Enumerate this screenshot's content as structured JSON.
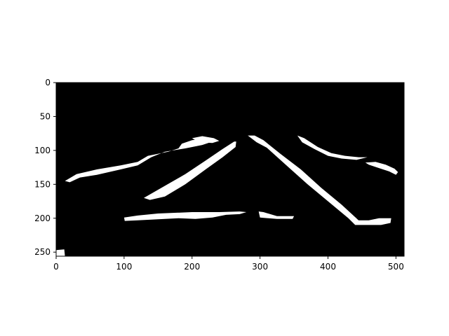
{
  "chart_data": {
    "type": "heatmap",
    "title": "",
    "xlabel": "",
    "ylabel": "",
    "image_size": [
      512,
      256
    ],
    "xlim": [
      0,
      512
    ],
    "ylim": [
      256,
      0
    ],
    "x_ticks": [
      0,
      100,
      200,
      300,
      400,
      500
    ],
    "y_ticks": [
      0,
      50,
      100,
      150,
      200,
      250
    ],
    "colors": {
      "background": "#000000",
      "foreground": "#ffffff",
      "axes": "#000000"
    },
    "masked_regions": [
      {
        "name": "left-lane-line",
        "points": [
          [
            13,
            145
          ],
          [
            30,
            135
          ],
          [
            60,
            128
          ],
          [
            95,
            122
          ],
          [
            120,
            117
          ],
          [
            135,
            108
          ],
          [
            165,
            102
          ],
          [
            180,
            97
          ],
          [
            185,
            90
          ],
          [
            200,
            85
          ],
          [
            215,
            83
          ],
          [
            228,
            82
          ],
          [
            230,
            87
          ],
          [
            215,
            92
          ],
          [
            190,
            97
          ],
          [
            160,
            102
          ],
          [
            140,
            110
          ],
          [
            120,
            122
          ],
          [
            95,
            128
          ],
          [
            60,
            136
          ],
          [
            35,
            140
          ],
          [
            20,
            147
          ]
        ]
      },
      {
        "name": "top-left-fragment",
        "points": [
          [
            200,
            82
          ],
          [
            215,
            79
          ],
          [
            232,
            82
          ],
          [
            240,
            86
          ],
          [
            230,
            89
          ],
          [
            210,
            88
          ]
        ]
      },
      {
        "name": "center-left-line",
        "points": [
          [
            129,
            170
          ],
          [
            155,
            155
          ],
          [
            190,
            135
          ],
          [
            220,
            115
          ],
          [
            245,
            98
          ],
          [
            262,
            87
          ],
          [
            265,
            87
          ],
          [
            264,
            95
          ],
          [
            245,
            110
          ],
          [
            220,
            128
          ],
          [
            190,
            150
          ],
          [
            160,
            168
          ],
          [
            138,
            173
          ]
        ]
      },
      {
        "name": "center-right-line",
        "points": [
          [
            282,
            78
          ],
          [
            292,
            78
          ],
          [
            305,
            85
          ],
          [
            330,
            105
          ],
          [
            360,
            128
          ],
          [
            390,
            155
          ],
          [
            420,
            180
          ],
          [
            445,
            203
          ],
          [
            460,
            203
          ],
          [
            475,
            200
          ],
          [
            493,
            200
          ],
          [
            492,
            207
          ],
          [
            478,
            210
          ],
          [
            460,
            210
          ],
          [
            440,
            210
          ],
          [
            430,
            200
          ],
          [
            400,
            175
          ],
          [
            370,
            150
          ],
          [
            340,
            123
          ],
          [
            310,
            96
          ],
          [
            295,
            88
          ]
        ]
      },
      {
        "name": "right-lane-line",
        "points": [
          [
            355,
            78
          ],
          [
            365,
            82
          ],
          [
            385,
            95
          ],
          [
            405,
            104
          ],
          [
            425,
            108
          ],
          [
            445,
            110
          ],
          [
            458,
            110
          ],
          [
            442,
            114
          ],
          [
            420,
            112
          ],
          [
            400,
            108
          ],
          [
            380,
            98
          ],
          [
            362,
            88
          ]
        ]
      },
      {
        "name": "far-right-fragment",
        "points": [
          [
            455,
            118
          ],
          [
            470,
            117
          ],
          [
            485,
            121
          ],
          [
            498,
            127
          ],
          [
            503,
            132
          ],
          [
            500,
            136
          ],
          [
            490,
            131
          ],
          [
            475,
            126
          ],
          [
            460,
            121
          ]
        ]
      },
      {
        "name": "bottom-left-bar",
        "points": [
          [
            100,
            199
          ],
          [
            120,
            196
          ],
          [
            150,
            193
          ],
          [
            200,
            191
          ],
          [
            240,
            191
          ],
          [
            270,
            190
          ],
          [
            280,
            191
          ],
          [
            270,
            194
          ],
          [
            250,
            195
          ],
          [
            230,
            199
          ],
          [
            205,
            201
          ],
          [
            180,
            200
          ],
          [
            160,
            201
          ],
          [
            140,
            202
          ],
          [
            120,
            203
          ],
          [
            101,
            204
          ]
        ]
      },
      {
        "name": "bottom-center-fragment",
        "points": [
          [
            298,
            190
          ],
          [
            305,
            191
          ],
          [
            325,
            197
          ],
          [
            350,
            197
          ],
          [
            348,
            201
          ],
          [
            325,
            201
          ],
          [
            300,
            199
          ]
        ]
      },
      {
        "name": "bottom-left-speck",
        "points": [
          [
            0,
            247
          ],
          [
            12,
            246
          ],
          [
            13,
            256
          ],
          [
            0,
            256
          ]
        ]
      }
    ]
  }
}
